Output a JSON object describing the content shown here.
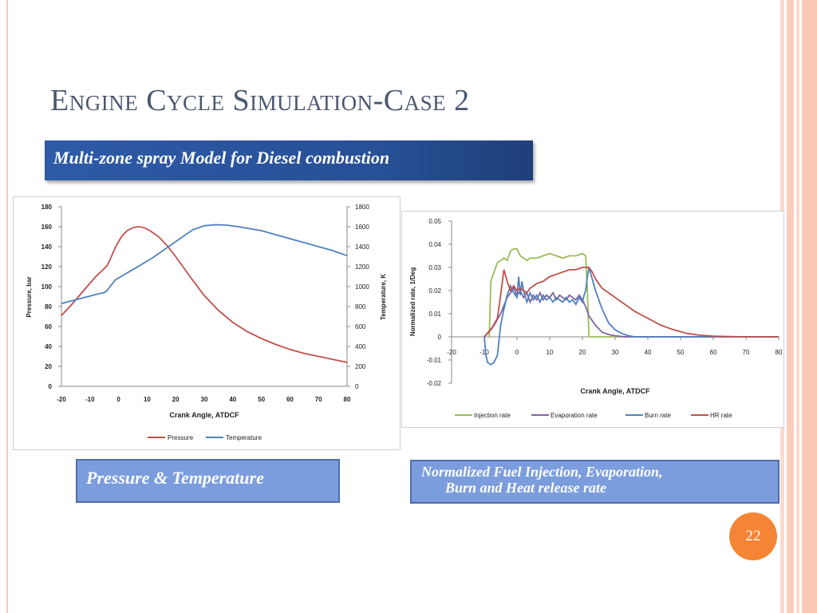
{
  "slide": {
    "title": "Engine Cycle Simulation-Case 2",
    "subtitle": "Multi-zone spray Model for Diesel combustion",
    "caption_left": "Pressure & Temperature",
    "caption_right_line1": "Normalized Fuel Injection, Evaporation,",
    "caption_right_line2": "Burn and Heat release rate",
    "page_number": "22",
    "colors": {
      "title": "#4a5770",
      "banner": "#2d5ba8",
      "caption": "#7b9ddd",
      "page_badge": "#f58535"
    }
  },
  "chart_data": [
    {
      "type": "line",
      "title": "",
      "xlabel": "Crank Angle, ATDCF",
      "ylabel": "Pressure, bar",
      "y2label": "Temperature, K",
      "xlim": [
        -20,
        80
      ],
      "ylim": [
        0,
        180
      ],
      "y2lim": [
        0,
        1800
      ],
      "xticks": [
        "-20",
        "-10",
        "0",
        "10",
        "20",
        "30",
        "40",
        "50",
        "60",
        "70",
        "80"
      ],
      "yticks": [
        "0",
        "20",
        "40",
        "60",
        "80",
        "100",
        "120",
        "140",
        "160",
        "180"
      ],
      "y2ticks": [
        "0",
        "200",
        "400",
        "600",
        "800",
        "1000",
        "1200",
        "1400",
        "1600",
        "1800"
      ],
      "grid": false,
      "legend": "bottom",
      "series": [
        {
          "name": "Pressure",
          "axis": "left",
          "color": "#c0504d",
          "x": [
            -20,
            -17,
            -14,
            -11,
            -8,
            -5,
            -4,
            -3,
            -1,
            1,
            3,
            5,
            7,
            9,
            11,
            14,
            17,
            20,
            25,
            30,
            35,
            40,
            45,
            50,
            55,
            60,
            65,
            70,
            75,
            80
          ],
          "y": [
            71,
            80,
            90,
            100,
            110,
            118,
            121,
            127,
            140,
            150,
            156,
            159,
            160,
            159,
            156,
            150,
            141,
            130,
            110,
            91,
            76,
            64,
            55,
            48,
            42,
            37,
            33,
            30,
            27,
            24
          ]
        },
        {
          "name": "Temperature",
          "axis": "right",
          "color": "#4f81bd",
          "x": [
            -20,
            -16,
            -12,
            -8,
            -5,
            -4,
            -3,
            -1,
            2,
            5,
            8,
            12,
            16,
            20,
            23,
            26,
            30,
            34,
            38,
            42,
            46,
            50,
            55,
            60,
            65,
            70,
            75,
            80
          ],
          "y": [
            830,
            860,
            890,
            920,
            940,
            960,
            1000,
            1070,
            1120,
            1170,
            1220,
            1290,
            1370,
            1450,
            1510,
            1570,
            1610,
            1620,
            1615,
            1600,
            1580,
            1560,
            1520,
            1480,
            1440,
            1400,
            1360,
            1310
          ]
        }
      ]
    },
    {
      "type": "line",
      "title": "",
      "xlabel": "Crank Angle, ATDCF",
      "ylabel": "Normalized rate, 1/Deg",
      "xlim": [
        -20,
        80
      ],
      "ylim": [
        -0.02,
        0.05
      ],
      "xticks": [
        "-20",
        "-10",
        "0",
        "10",
        "20",
        "30",
        "40",
        "50",
        "60",
        "70",
        "80"
      ],
      "yticks": [
        "-0.02",
        "-0.01",
        "0",
        "0.01",
        "0.02",
        "0.03",
        "0.04",
        "0.05"
      ],
      "grid": false,
      "legend": "bottom",
      "series": [
        {
          "name": "Injection rate",
          "color": "#9bbb59",
          "x": [
            -8.5,
            -8,
            -7,
            -6,
            -5,
            -4,
            -3,
            -2,
            -1,
            0,
            1,
            2,
            3,
            4,
            6,
            8,
            10,
            12,
            14,
            16,
            18,
            20,
            21,
            21.5,
            22,
            25,
            80
          ],
          "y": [
            0,
            0.024,
            0.028,
            0.032,
            0.033,
            0.034,
            0.033,
            0.037,
            0.038,
            0.038,
            0.035,
            0.034,
            0.033,
            0.034,
            0.034,
            0.035,
            0.036,
            0.035,
            0.034,
            0.035,
            0.035,
            0.036,
            0.035,
            0.02,
            0,
            0,
            0
          ]
        },
        {
          "name": "Evaporation rate",
          "color": "#8064a2",
          "x": [
            -10,
            -7,
            -5,
            -3,
            -1,
            0,
            1,
            2,
            3,
            4,
            5,
            6,
            7,
            8,
            9,
            10,
            11,
            12,
            13,
            14,
            15,
            16,
            17,
            18,
            19,
            20,
            21,
            22,
            24,
            26,
            28,
            30,
            33,
            36,
            80
          ],
          "y": [
            0,
            0.005,
            0.01,
            0.017,
            0.021,
            0.018,
            0.02,
            0.017,
            0.019,
            0.015,
            0.018,
            0.016,
            0.019,
            0.016,
            0.018,
            0.017,
            0.019,
            0.016,
            0.018,
            0.017,
            0.016,
            0.018,
            0.017,
            0.016,
            0.018,
            0.016,
            0.013,
            0.009,
            0.005,
            0.002,
            0.001,
            0.0005,
            0,
            0,
            0
          ]
        },
        {
          "name": "Burn rate",
          "color": "#4f81bd",
          "x": [
            -10,
            -9.5,
            -9,
            -8,
            -7,
            -6,
            -5,
            -4,
            -3,
            -2,
            -1,
            0,
            0.5,
            1,
            1.5,
            2,
            3,
            4,
            5,
            6,
            7,
            8,
            9,
            10,
            11,
            12,
            13,
            14,
            15,
            16,
            17,
            18,
            19,
            20,
            20.5,
            21,
            21.5,
            22,
            23,
            24,
            25,
            26,
            27,
            28,
            30,
            32,
            34,
            36,
            40,
            80
          ],
          "y": [
            0,
            -0.008,
            -0.011,
            -0.012,
            -0.011,
            -0.008,
            0.005,
            0.012,
            0.018,
            0.022,
            0.019,
            0.017,
            0.026,
            0.018,
            0.024,
            0.02,
            0.015,
            0.019,
            0.016,
            0.018,
            0.015,
            0.018,
            0.016,
            0.017,
            0.015,
            0.017,
            0.016,
            0.015,
            0.017,
            0.015,
            0.016,
            0.014,
            0.017,
            0.015,
            0.018,
            0.02,
            0.026,
            0.03,
            0.025,
            0.02,
            0.016,
            0.012,
            0.009,
            0.006,
            0.003,
            0.0015,
            0.0005,
            0,
            0,
            0
          ]
        },
        {
          "name": "HR rate",
          "color": "#c0504d",
          "x": [
            -10,
            -8,
            -6,
            -5,
            -4,
            -3,
            -2,
            -1,
            0,
            1,
            2,
            3,
            4,
            6,
            8,
            10,
            12,
            14,
            16,
            18,
            20,
            21,
            22,
            23,
            24,
            25,
            26,
            28,
            30,
            32,
            34,
            36,
            38,
            40,
            44,
            48,
            52,
            56,
            60,
            65,
            70,
            80
          ],
          "y": [
            0,
            0.003,
            0.008,
            0.018,
            0.029,
            0.024,
            0.02,
            0.022,
            0.02,
            0.021,
            0.02,
            0.019,
            0.021,
            0.023,
            0.024,
            0.026,
            0.027,
            0.028,
            0.029,
            0.029,
            0.03,
            0.03,
            0.03,
            0.028,
            0.025,
            0.023,
            0.021,
            0.019,
            0.017,
            0.015,
            0.013,
            0.011,
            0.0095,
            0.008,
            0.005,
            0.003,
            0.0015,
            0.0007,
            0.0003,
            0.0001,
            0,
            0
          ]
        }
      ]
    }
  ]
}
